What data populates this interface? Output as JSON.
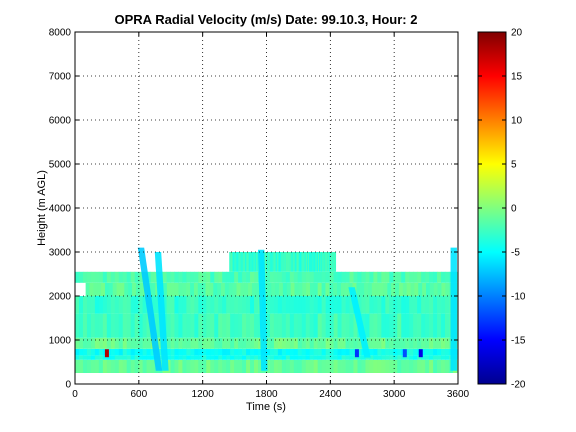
{
  "chart_data": {
    "type": "heatmap",
    "title": "OPRA Radial Velocity (m/s)  Date: 99.10.3, Hour: 2",
    "xlabel": "Time (s)",
    "ylabel": "Height (m AGL)",
    "xlim": [
      0,
      3600
    ],
    "ylim": [
      0,
      8000
    ],
    "x_ticks": [
      "0",
      "600",
      "1200",
      "1800",
      "2400",
      "3000",
      "3600"
    ],
    "y_ticks": [
      "0",
      "1000",
      "2000",
      "3000",
      "4000",
      "5000",
      "6000",
      "7000",
      "8000"
    ],
    "grid": true,
    "colorbar": {
      "ticks": [
        "-20",
        "-15",
        "-10",
        "-5",
        "0",
        "5",
        "10",
        "15",
        "20"
      ],
      "range": [
        -20,
        20
      ],
      "colormap": "jet"
    },
    "layers": [
      {
        "name": "",
        "y0": 250,
        "y1": 550,
        "x0": 0,
        "x1": 3590,
        "value": -1
      },
      {
        "name": "",
        "y0": 550,
        "y1": 650,
        "x0": 0,
        "x1": 3590,
        "value": -4
      },
      {
        "name": "",
        "y0": 650,
        "y1": 800,
        "x0": 0,
        "x1": 3590,
        "value": -4.5
      },
      {
        "name": "",
        "y0": 800,
        "y1": 1050,
        "x0": 0,
        "x1": 3590,
        "value": -1
      },
      {
        "name": "",
        "y0": 1050,
        "y1": 1600,
        "x0": 0,
        "x1": 3590,
        "value": -2.5
      },
      {
        "name": "",
        "y0": 1600,
        "y1": 2000,
        "x0": 0,
        "x1": 3590,
        "value": -3
      },
      {
        "name": "",
        "y0": 2000,
        "y1": 2300,
        "x0": 100,
        "x1": 3590,
        "value": -1.5
      },
      {
        "name": "",
        "y0": 2300,
        "y1": 2550,
        "x0": 0,
        "x1": 3590,
        "value": -2
      },
      {
        "name": "",
        "y0": 2550,
        "y1": 3000,
        "x0": 1450,
        "x1": 2450,
        "value": -3
      }
    ],
    "streaks": [
      {
        "name": "",
        "x_top": 620,
        "x_bottom": 790,
        "y0": 300,
        "y1": 3100,
        "value": -7
      },
      {
        "name": "",
        "x_top": 780,
        "x_bottom": 850,
        "y0": 300,
        "y1": 3000,
        "value": -6
      },
      {
        "name": "",
        "x_top": 1750,
        "x_bottom": 1780,
        "y0": 300,
        "y1": 3050,
        "value": -6
      },
      {
        "name": "",
        "x_top": 2600,
        "x_bottom": 2750,
        "y0": 600,
        "y1": 2200,
        "value": -5.5
      },
      {
        "name": "",
        "x_top": 3560,
        "x_bottom": 3560,
        "y0": 300,
        "y1": 3100,
        "value": -6
      }
    ],
    "spots": [
      {
        "name": "",
        "x": 300,
        "y": 700,
        "value": 18
      },
      {
        "name": "",
        "x": 3250,
        "y": 700,
        "value": -16
      },
      {
        "name": "",
        "x": 3100,
        "y": 700,
        "value": -12
      },
      {
        "name": "",
        "x": 2650,
        "y": 700,
        "value": -13
      }
    ]
  }
}
